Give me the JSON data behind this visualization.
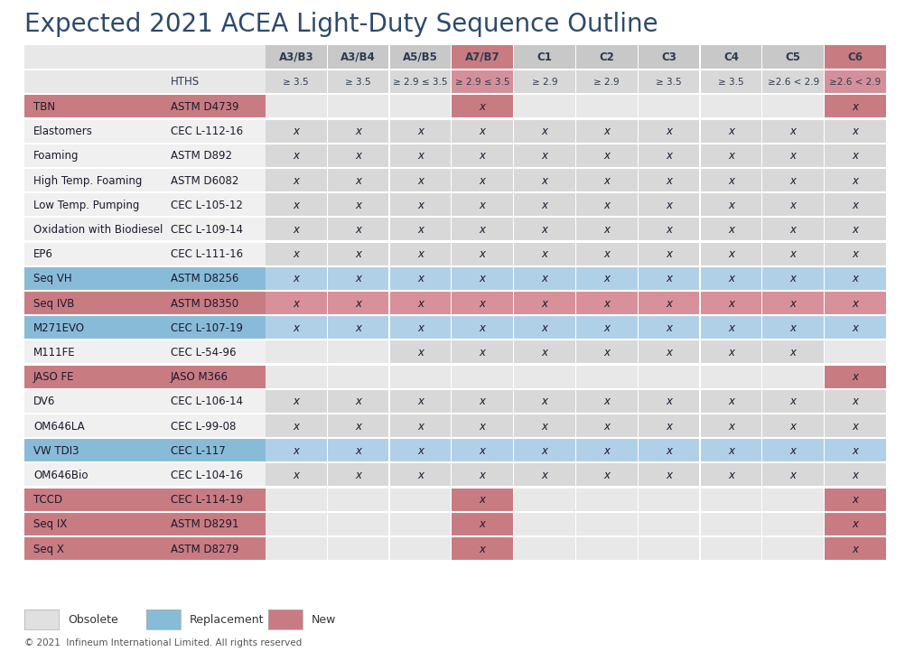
{
  "title": "Expected 2021 ACEA Light-Duty Sequence Outline",
  "title_color": "#2d4a6b",
  "title_fontsize": 20,
  "background_color": "#ffffff",
  "col_headers": [
    "A3/B3",
    "A3/B4",
    "A5/B5",
    "A7/B7",
    "C1",
    "C2",
    "C3",
    "C4",
    "C5",
    "C6"
  ],
  "hths_row": [
    "≥ 3.5",
    "≥ 3.5",
    "≥ 2.9 ≤ 3.5",
    "≥ 2.9 ≤ 3.5",
    "≥ 2.9",
    "≥ 2.9",
    "≥ 3.5",
    "≥ 3.5",
    "≥2.6 < 2.9",
    "≥2.6 < 2.9"
  ],
  "col_header_colors": [
    "#c8c8c8",
    "#c8c8c8",
    "#c8c8c8",
    "#c97b82",
    "#c8c8c8",
    "#c8c8c8",
    "#c8c8c8",
    "#c8c8c8",
    "#c8c8c8",
    "#c97b82"
  ],
  "rows": [
    {
      "name": "TBN",
      "std": "ASTM D4739",
      "name_bg": "#c97b82",
      "std_bg": "#c97b82",
      "cells": [
        "",
        "",
        "",
        "x",
        "",
        "",
        "",
        "",
        "",
        "x"
      ],
      "cell_colors": [
        "#e8e8e8",
        "#e8e8e8",
        "#e8e8e8",
        "#c97b82",
        "#e8e8e8",
        "#e8e8e8",
        "#e8e8e8",
        "#e8e8e8",
        "#e8e8e8",
        "#c97b82"
      ]
    },
    {
      "name": "Elastomers",
      "std": "CEC L-112-16",
      "name_bg": "#f0f0f0",
      "std_bg": "#f0f0f0",
      "cells": [
        "x",
        "x",
        "x",
        "x",
        "x",
        "x",
        "x",
        "x",
        "x",
        "x"
      ],
      "cell_colors": [
        "#d8d8d8",
        "#d8d8d8",
        "#d8d8d8",
        "#d8d8d8",
        "#d8d8d8",
        "#d8d8d8",
        "#d8d8d8",
        "#d8d8d8",
        "#d8d8d8",
        "#d8d8d8"
      ]
    },
    {
      "name": "Foaming",
      "std": "ASTM D892",
      "name_bg": "#f0f0f0",
      "std_bg": "#f0f0f0",
      "cells": [
        "x",
        "x",
        "x",
        "x",
        "x",
        "x",
        "x",
        "x",
        "x",
        "x"
      ],
      "cell_colors": [
        "#d8d8d8",
        "#d8d8d8",
        "#d8d8d8",
        "#d8d8d8",
        "#d8d8d8",
        "#d8d8d8",
        "#d8d8d8",
        "#d8d8d8",
        "#d8d8d8",
        "#d8d8d8"
      ]
    },
    {
      "name": "High Temp. Foaming",
      "std": "ASTM D6082",
      "name_bg": "#f0f0f0",
      "std_bg": "#f0f0f0",
      "cells": [
        "x",
        "x",
        "x",
        "x",
        "x",
        "x",
        "x",
        "x",
        "x",
        "x"
      ],
      "cell_colors": [
        "#d8d8d8",
        "#d8d8d8",
        "#d8d8d8",
        "#d8d8d8",
        "#d8d8d8",
        "#d8d8d8",
        "#d8d8d8",
        "#d8d8d8",
        "#d8d8d8",
        "#d8d8d8"
      ]
    },
    {
      "name": "Low Temp. Pumping",
      "std": "CEC L-105-12",
      "name_bg": "#f0f0f0",
      "std_bg": "#f0f0f0",
      "cells": [
        "x",
        "x",
        "x",
        "x",
        "x",
        "x",
        "x",
        "x",
        "x",
        "x"
      ],
      "cell_colors": [
        "#d8d8d8",
        "#d8d8d8",
        "#d8d8d8",
        "#d8d8d8",
        "#d8d8d8",
        "#d8d8d8",
        "#d8d8d8",
        "#d8d8d8",
        "#d8d8d8",
        "#d8d8d8"
      ]
    },
    {
      "name": "Oxidation with Biodiesel",
      "std": "CEC L-109-14",
      "name_bg": "#f0f0f0",
      "std_bg": "#f0f0f0",
      "cells": [
        "x",
        "x",
        "x",
        "x",
        "x",
        "x",
        "x",
        "x",
        "x",
        "x"
      ],
      "cell_colors": [
        "#d8d8d8",
        "#d8d8d8",
        "#d8d8d8",
        "#d8d8d8",
        "#d8d8d8",
        "#d8d8d8",
        "#d8d8d8",
        "#d8d8d8",
        "#d8d8d8",
        "#d8d8d8"
      ]
    },
    {
      "name": "EP6",
      "std": "CEC L-111-16",
      "name_bg": "#f0f0f0",
      "std_bg": "#f0f0f0",
      "cells": [
        "x",
        "x",
        "x",
        "x",
        "x",
        "x",
        "x",
        "x",
        "x",
        "x"
      ],
      "cell_colors": [
        "#d8d8d8",
        "#d8d8d8",
        "#d8d8d8",
        "#d8d8d8",
        "#d8d8d8",
        "#d8d8d8",
        "#d8d8d8",
        "#d8d8d8",
        "#d8d8d8",
        "#d8d8d8"
      ]
    },
    {
      "name": "Seq VH",
      "std": "ASTM D8256",
      "name_bg": "#88bbd8",
      "std_bg": "#88bbd8",
      "cells": [
        "x",
        "x",
        "x",
        "x",
        "x",
        "x",
        "x",
        "x",
        "x",
        "x"
      ],
      "cell_colors": [
        "#b0d0e8",
        "#b0d0e8",
        "#b0d0e8",
        "#b0d0e8",
        "#b0d0e8",
        "#b0d0e8",
        "#b0d0e8",
        "#b0d0e8",
        "#b0d0e8",
        "#b0d0e8"
      ]
    },
    {
      "name": "Seq IVB",
      "std": "ASTM D8350",
      "name_bg": "#c97b82",
      "std_bg": "#c97b82",
      "cells": [
        "x",
        "x",
        "x",
        "x",
        "x",
        "x",
        "x",
        "x",
        "x",
        "x"
      ],
      "cell_colors": [
        "#d8909a",
        "#d8909a",
        "#d8909a",
        "#d8909a",
        "#d8909a",
        "#d8909a",
        "#d8909a",
        "#d8909a",
        "#d8909a",
        "#d8909a"
      ]
    },
    {
      "name": "M271EVO",
      "std": "CEC L-107-19",
      "name_bg": "#88bbd8",
      "std_bg": "#88bbd8",
      "cells": [
        "x",
        "x",
        "x",
        "x",
        "x",
        "x",
        "x",
        "x",
        "x",
        "x"
      ],
      "cell_colors": [
        "#b0d0e8",
        "#b0d0e8",
        "#b0d0e8",
        "#b0d0e8",
        "#b0d0e8",
        "#b0d0e8",
        "#b0d0e8",
        "#b0d0e8",
        "#b0d0e8",
        "#b0d0e8"
      ]
    },
    {
      "name": "M111FE",
      "std": "CEC L-54-96",
      "name_bg": "#f0f0f0",
      "std_bg": "#f0f0f0",
      "cells": [
        "",
        "",
        "x",
        "x",
        "x",
        "x",
        "x",
        "x",
        "x",
        ""
      ],
      "cell_colors": [
        "#e8e8e8",
        "#e8e8e8",
        "#d8d8d8",
        "#d8d8d8",
        "#d8d8d8",
        "#d8d8d8",
        "#d8d8d8",
        "#d8d8d8",
        "#d8d8d8",
        "#e8e8e8"
      ]
    },
    {
      "name": "JASO FE",
      "std": "JASO M366",
      "name_bg": "#c97b82",
      "std_bg": "#c97b82",
      "cells": [
        "",
        "",
        "",
        "",
        "",
        "",
        "",
        "",
        "",
        "x"
      ],
      "cell_colors": [
        "#e8e8e8",
        "#e8e8e8",
        "#e8e8e8",
        "#e8e8e8",
        "#e8e8e8",
        "#e8e8e8",
        "#e8e8e8",
        "#e8e8e8",
        "#e8e8e8",
        "#c97b82"
      ]
    },
    {
      "name": "DV6",
      "std": "CEC L-106-14",
      "name_bg": "#f0f0f0",
      "std_bg": "#f0f0f0",
      "cells": [
        "x",
        "x",
        "x",
        "x",
        "x",
        "x",
        "x",
        "x",
        "x",
        "x"
      ],
      "cell_colors": [
        "#d8d8d8",
        "#d8d8d8",
        "#d8d8d8",
        "#d8d8d8",
        "#d8d8d8",
        "#d8d8d8",
        "#d8d8d8",
        "#d8d8d8",
        "#d8d8d8",
        "#d8d8d8"
      ]
    },
    {
      "name": "OM646LA",
      "std": "CEC L-99-08",
      "name_bg": "#f0f0f0",
      "std_bg": "#f0f0f0",
      "cells": [
        "x",
        "x",
        "x",
        "x",
        "x",
        "x",
        "x",
        "x",
        "x",
        "x"
      ],
      "cell_colors": [
        "#d8d8d8",
        "#d8d8d8",
        "#d8d8d8",
        "#d8d8d8",
        "#d8d8d8",
        "#d8d8d8",
        "#d8d8d8",
        "#d8d8d8",
        "#d8d8d8",
        "#d8d8d8"
      ]
    },
    {
      "name": "VW TDI3",
      "std": "CEC L-117",
      "name_bg": "#88bbd8",
      "std_bg": "#88bbd8",
      "cells": [
        "x",
        "x",
        "x",
        "x",
        "x",
        "x",
        "x",
        "x",
        "x",
        "x"
      ],
      "cell_colors": [
        "#b0d0e8",
        "#b0d0e8",
        "#b0d0e8",
        "#b0d0e8",
        "#b0d0e8",
        "#b0d0e8",
        "#b0d0e8",
        "#b0d0e8",
        "#b0d0e8",
        "#b0d0e8"
      ]
    },
    {
      "name": "OM646Bio",
      "std": "CEC L-104-16",
      "name_bg": "#f0f0f0",
      "std_bg": "#f0f0f0",
      "cells": [
        "x",
        "x",
        "x",
        "x",
        "x",
        "x",
        "x",
        "x",
        "x",
        "x"
      ],
      "cell_colors": [
        "#d8d8d8",
        "#d8d8d8",
        "#d8d8d8",
        "#d8d8d8",
        "#d8d8d8",
        "#d8d8d8",
        "#d8d8d8",
        "#d8d8d8",
        "#d8d8d8",
        "#d8d8d8"
      ]
    },
    {
      "name": "TCCD",
      "std": "CEC L-114-19",
      "name_bg": "#c97b82",
      "std_bg": "#c97b82",
      "cells": [
        "",
        "",
        "",
        "x",
        "",
        "",
        "",
        "",
        "",
        "x"
      ],
      "cell_colors": [
        "#e8e8e8",
        "#e8e8e8",
        "#e8e8e8",
        "#c97b82",
        "#e8e8e8",
        "#e8e8e8",
        "#e8e8e8",
        "#e8e8e8",
        "#e8e8e8",
        "#c97b82"
      ]
    },
    {
      "name": "Seq IX",
      "std": "ASTM D8291",
      "name_bg": "#c97b82",
      "std_bg": "#c97b82",
      "cells": [
        "",
        "",
        "",
        "x",
        "",
        "",
        "",
        "",
        "",
        "x"
      ],
      "cell_colors": [
        "#e8e8e8",
        "#e8e8e8",
        "#e8e8e8",
        "#c97b82",
        "#e8e8e8",
        "#e8e8e8",
        "#e8e8e8",
        "#e8e8e8",
        "#e8e8e8",
        "#c97b82"
      ]
    },
    {
      "name": "Seq X",
      "std": "ASTM D8279",
      "name_bg": "#c97b82",
      "std_bg": "#c97b82",
      "cells": [
        "",
        "",
        "",
        "x",
        "",
        "",
        "",
        "",
        "",
        "x"
      ],
      "cell_colors": [
        "#e8e8e8",
        "#e8e8e8",
        "#e8e8e8",
        "#c97b82",
        "#e8e8e8",
        "#e8e8e8",
        "#e8e8e8",
        "#e8e8e8",
        "#e8e8e8",
        "#c97b82"
      ]
    }
  ],
  "legend": [
    {
      "label": "Obsolete",
      "color": "#e0e0e0"
    },
    {
      "label": "Replacement",
      "color": "#88bbd8"
    },
    {
      "label": "New",
      "color": "#c97b82"
    }
  ],
  "footer": "© 2021  Infineum International Limited. All rights reserved"
}
